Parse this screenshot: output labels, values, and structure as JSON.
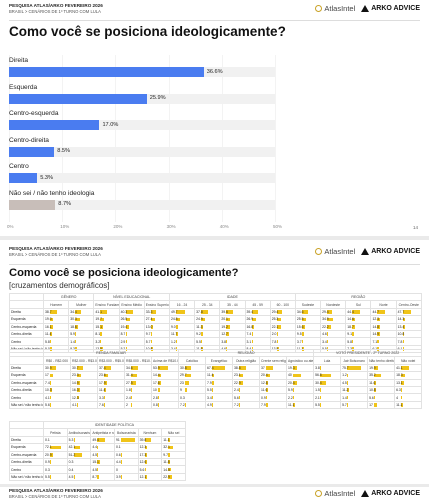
{
  "header": {
    "survey": "PESQUISA ATLAS/ARKO FEVEREIRO 2026",
    "scope": "BRASIL > CENÁRIOS DE 1º TURNO COM LULA",
    "logo_atlas": "AtlasIntel",
    "logo_arko": "ARKO ADVICE"
  },
  "page1": {
    "title": "Como você se posiciona ideologicamente?",
    "page_number": "14",
    "axis_ticks": [
      "0%",
      "10%",
      "20%",
      "30%",
      "40%",
      "50%"
    ],
    "chart_data": {
      "type": "bar",
      "orientation": "horizontal",
      "categories": [
        "Direita",
        "Esquerda",
        "Centro-esquerda",
        "Centro-direita",
        "Centro",
        "Não sei / não tenho ideologia"
      ],
      "values": [
        36.6,
        25.9,
        17.0,
        8.5,
        5.3,
        8.7
      ],
      "value_labels": [
        "36.6%",
        "25.9%",
        "17.0%",
        "8.5%",
        "5.3%",
        "8.7%"
      ],
      "colors": [
        "#4a7cf0",
        "#4a7cf0",
        "#4a7cf0",
        "#4a7cf0",
        "#4a7cf0",
        "#c8beb9"
      ],
      "xlim": [
        0,
        50
      ]
    }
  },
  "page2": {
    "title": "Como você se posiciona ideologicamente?",
    "subtitle": "[cruzamentos demográficos]",
    "rows": [
      "Direita",
      "Esquerda",
      "Centro-esquerda",
      "Centro-direita",
      "Centro",
      "Não sei / não tenho ideologia"
    ],
    "table1": {
      "groups": [
        "GÊNERO",
        "NÍVEL EDUCACIONAL",
        "IDADE",
        "REGIÃO"
      ],
      "cols": [
        "Homem",
        "Mulher",
        "Ensino Fundamental",
        "Ensino Médio",
        "Ensino Superior",
        "16 - 24",
        "25 - 34",
        "35 - 44",
        "45 - 59",
        "60 - 100",
        "Sudeste",
        "Nordeste",
        "Sul",
        "Norte",
        "Centro-Oeste"
      ],
      "data": [
        [
          "38.7",
          "34.4",
          "41.1",
          "40.3",
          "33.3",
          "49.7",
          "37.8",
          "39.6",
          "39.4",
          "29.4",
          "34.6",
          "29.4",
          "44.4",
          "44.7",
          "47.7"
        ],
        [
          "19.0",
          "30.3",
          "19.7",
          "26.5",
          "27.4",
          "24.8",
          "24.9",
          "20.1",
          "26.9",
          "25.3",
          "25.5",
          "34.9",
          "14.6",
          "12.3",
          "14.3"
        ],
        [
          "16.1",
          "18.6",
          "15.1",
          "19.4",
          "13.0",
          "9.0",
          "11.3",
          "19.2",
          "16.8",
          "22.1",
          "15.6",
          "22.2",
          "18.7",
          "14.8",
          "13.4"
        ],
        [
          "11.4",
          "5.9",
          "8.1",
          "8.7",
          "9.7",
          "11.7",
          "9.2",
          "12.7",
          "7.4",
          "2.0",
          "9.5",
          "4.6",
          "9.1",
          "14.9",
          "10.8"
        ],
        [
          "5.8",
          "1.4",
          "3.2",
          "2.9",
          "5.7",
          "1.2",
          "5.5",
          "3.8",
          "3.1",
          "7.8",
          "3.7",
          "3.4",
          "5.8",
          "7.1",
          "7.8"
        ],
        [
          "9.0",
          "9.3",
          "13.5",
          "5.2",
          "10.8",
          "3.4",
          "11.5",
          "4.6",
          "8.4",
          "13.5",
          "11.1",
          "5.5",
          "7.3",
          "6.1",
          "6.1"
        ]
      ]
    },
    "table2": {
      "groups": [
        "RENDA FAMILIAR",
        "RELIGIÃO",
        "VOTO PRESIDENTE - 2º TURNO 2022"
      ],
      "cols": [
        "R$0 - R$2.000",
        "R$2.000 - R$3.000",
        "R$3.000 - R$5.000",
        "R$5.000 - R$10.000",
        "Acima de R$10.000",
        "Católico",
        "Evangélico",
        "Outra religião",
        "Crente sem religião",
        "Agnóstico ou ateu",
        "Lula",
        "Jair Bolsonaro",
        "Não tenho direito",
        "Não votei"
      ],
      "data": [
        [
          "30.9",
          "30.7",
          "37.4",
          "34.6",
          "53.9",
          "30.8",
          "67.4",
          "38.8",
          "37",
          "19.3",
          "3.8",
          "75.7",
          "19.9",
          "41.1"
        ],
        [
          "17",
          "23.3",
          "23.6",
          "31.4",
          "14.4",
          "29.7",
          "11.4",
          "23.1",
          "20.4",
          "40",
          "56.8",
          "1.2",
          "35.2",
          "18.3"
        ],
        [
          "7.4",
          "14.9",
          "17.9",
          "27.5",
          "17.6",
          "23",
          "7.9",
          "22.9",
          "12.8",
          "20.4",
          "30.4",
          "4.5",
          "11.6",
          "13.1"
        ],
        [
          "10.3",
          "16.3",
          "11.4",
          "1.8",
          "10",
          "9",
          "5.5",
          "2.4",
          "11.6",
          "5.9",
          "1.5",
          "11.2",
          "10.8",
          "6.3"
        ],
        [
          "4.1",
          "12.3",
          "3.3",
          "2.4",
          "2.8",
          "0.3",
          "3.4",
          "5.6",
          "0.9",
          "2.2",
          "2.1",
          "1.4",
          "5.6",
          "4"
        ],
        [
          "5.6",
          "4.1",
          "7.6",
          "2",
          "0.8",
          "7.2",
          "4.9",
          "7.2",
          "7.9",
          "11.1",
          "5.5",
          "5.7",
          "17",
          "11.1"
        ]
      ]
    },
    "table3": {
      "groups": [
        "IDENTIDADE POLÍTICA"
      ],
      "cols": [
        "Petista",
        "Antibolsonarista e não - petista antibolsonarista",
        "Antipetista e não - bolsonarista",
        "Bolsonarista",
        "Nenhum",
        "Não sei"
      ],
      "data": [
        [
          "0.1",
          "5.3",
          "49.4",
          "91",
          "39.8",
          "11.1"
        ],
        [
          "72.1",
          "42.1",
          "4.4",
          "0.1",
          "12.3",
          "32.1"
        ],
        [
          "20.9",
          "51.2",
          "4.5",
          "0.6",
          "17.3",
          "9.7"
        ],
        [
          "0.9",
          "0.3",
          "15.1",
          "4.4",
          "12.6",
          "11.8"
        ],
        [
          "0.3",
          "0.4",
          "4.5",
          "0",
          "5.6",
          "14.5"
        ],
        [
          "5.5",
          "4.5",
          "8.7",
          "3.9",
          "12.1",
          "22.9"
        ]
      ]
    }
  },
  "page3": {
    "survey": "PESQUISA ATLAS/ARKO FEVEREIRO 2026",
    "scope": "BRASIL > CENÁRIOS DE 1º TURNO COM LULA"
  }
}
